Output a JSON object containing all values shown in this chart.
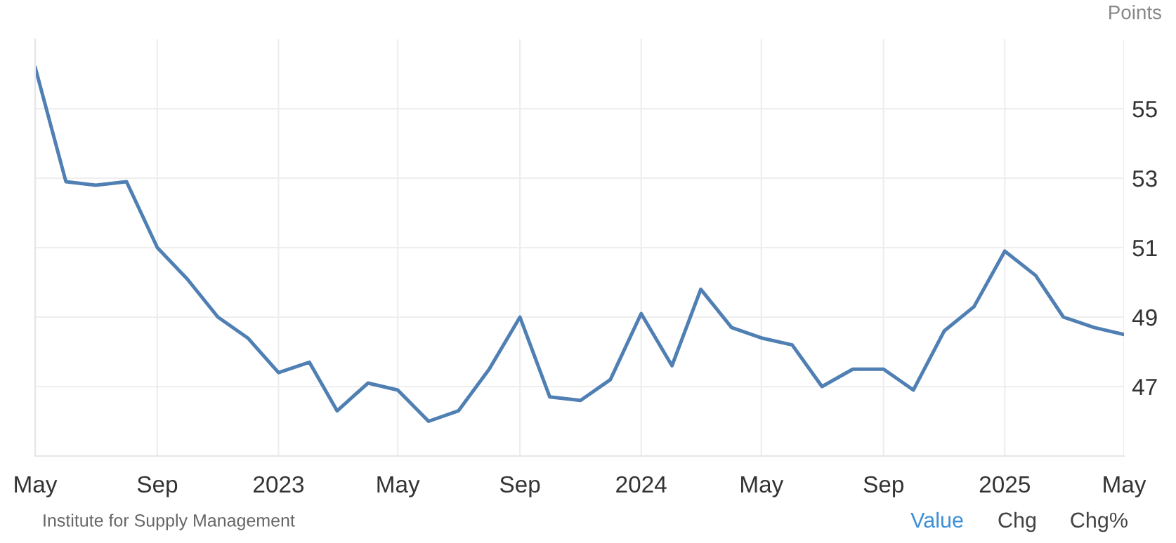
{
  "chart_data": {
    "type": "line",
    "ylabel": "Points",
    "x": [
      "2022-05",
      "2022-06",
      "2022-07",
      "2022-08",
      "2022-09",
      "2022-10",
      "2022-11",
      "2022-12",
      "2023-01",
      "2023-02",
      "2023-03",
      "2023-04",
      "2023-05",
      "2023-06",
      "2023-07",
      "2023-08",
      "2023-09",
      "2023-10",
      "2023-11",
      "2023-12",
      "2024-01",
      "2024-02",
      "2024-03",
      "2024-04",
      "2024-05",
      "2024-06",
      "2024-07",
      "2024-08",
      "2024-09",
      "2024-10",
      "2024-11",
      "2024-12",
      "2025-01",
      "2025-02",
      "2025-03",
      "2025-04",
      "2025-05"
    ],
    "series": [
      {
        "color": "#4f7fb3",
        "values": [
          56.2,
          52.9,
          52.8,
          52.9,
          51.0,
          50.1,
          49.0,
          48.4,
          47.4,
          47.7,
          46.3,
          47.1,
          46.9,
          46.0,
          46.3,
          47.5,
          49.0,
          46.7,
          46.6,
          47.2,
          49.1,
          47.6,
          49.8,
          48.7,
          48.4,
          48.2,
          47.0,
          47.5,
          47.5,
          46.9,
          48.6,
          49.3,
          50.9,
          50.2,
          49.0,
          48.7,
          48.5
        ]
      }
    ],
    "xlim": [
      "2022-05",
      "2025-05"
    ],
    "xticks": [
      {
        "value": "2022-05",
        "label": "May"
      },
      {
        "value": "2022-09",
        "label": "Sep"
      },
      {
        "value": "2023-01",
        "label": "2023"
      },
      {
        "value": "2023-05",
        "label": "May"
      },
      {
        "value": "2023-09",
        "label": "Sep"
      },
      {
        "value": "2024-01",
        "label": "2024"
      },
      {
        "value": "2024-05",
        "label": "May"
      },
      {
        "value": "2024-09",
        "label": "Sep"
      },
      {
        "value": "2025-01",
        "label": "2025"
      },
      {
        "value": "2025-05",
        "label": "May"
      }
    ],
    "ylim": [
      45,
      57
    ],
    "yticks": [
      47,
      49,
      51,
      53,
      55
    ],
    "grid": true,
    "marker": "none",
    "line_style": "solid",
    "annotations": [
      "Institute for Supply Management",
      "Value",
      "Chg",
      "Chg%"
    ]
  }
}
